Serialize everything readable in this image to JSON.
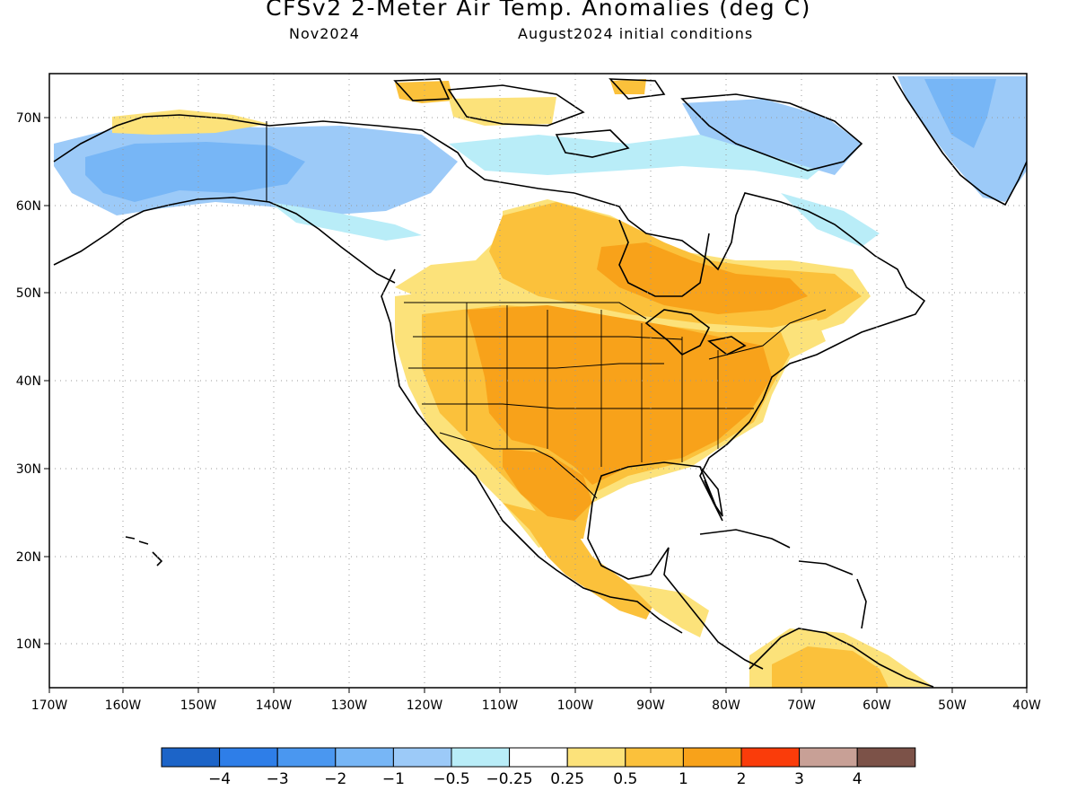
{
  "title": "CFSv2 2-Meter Air Temp. Anomalies (deg C)",
  "subtitle_left": "Nov2024",
  "subtitle_right": "August2024 initial conditions",
  "lon_labels": [
    "170W",
    "160W",
    "150W",
    "140W",
    "130W",
    "120W",
    "110W",
    "100W",
    "90W",
    "80W",
    "70W",
    "60W",
    "50W",
    "40W"
  ],
  "lat_labels": [
    "70N",
    "60N",
    "50N",
    "40N",
    "30N",
    "20N",
    "10N"
  ],
  "colors": {
    "land_outline": "#000000",
    "grid": "#999999"
  },
  "legend": {
    "colors": [
      "#1c64c8",
      "#2e7ee8",
      "#4a97f0",
      "#77b6f6",
      "#9ccaf8",
      "#b9edf8",
      "#ffffff",
      "#fce27a",
      "#fbc13b",
      "#f8a21a",
      "#fa3c0a",
      "#c8a096",
      "#7c5248"
    ],
    "labels": [
      "−4",
      "−3",
      "−2",
      "−1",
      "−0.5",
      "−0.25",
      "0.25",
      "0.5",
      "1",
      "2",
      "3",
      "4"
    ]
  },
  "chart_data": {
    "type": "heatmap",
    "title": "CFSv2 2-Meter Air Temp. Anomalies (deg C)",
    "xlim": [
      "170W",
      "40W"
    ],
    "ylim": [
      "5N",
      "75N"
    ],
    "grid": true,
    "regions": [
      {
        "region": "Alaska",
        "anomaly_range": [
          -2,
          -1
        ]
      },
      {
        "region": "Northern Yukon / NW Canada",
        "anomaly_range": [
          -1,
          -0.25
        ]
      },
      {
        "region": "Arctic Archipelago",
        "anomaly_range": [
          -0.5,
          0.5
        ]
      },
      {
        "region": "Greenland",
        "anomaly_range": [
          -2,
          -0.5
        ]
      },
      {
        "region": "Hudson Bay / Ontario",
        "anomaly_range": [
          1,
          2
        ]
      },
      {
        "region": "Central and Southern US",
        "anomaly_range": [
          1,
          2
        ]
      },
      {
        "region": "Pacific Northwest / California",
        "anomaly_range": [
          0.25,
          1
        ]
      },
      {
        "region": "Eastern US",
        "anomaly_range": [
          1,
          2
        ]
      },
      {
        "region": "Mexico",
        "anomaly_range": [
          0.5,
          2
        ]
      },
      {
        "region": "Northern South America",
        "anomaly_range": [
          0.5,
          1
        ]
      }
    ]
  }
}
